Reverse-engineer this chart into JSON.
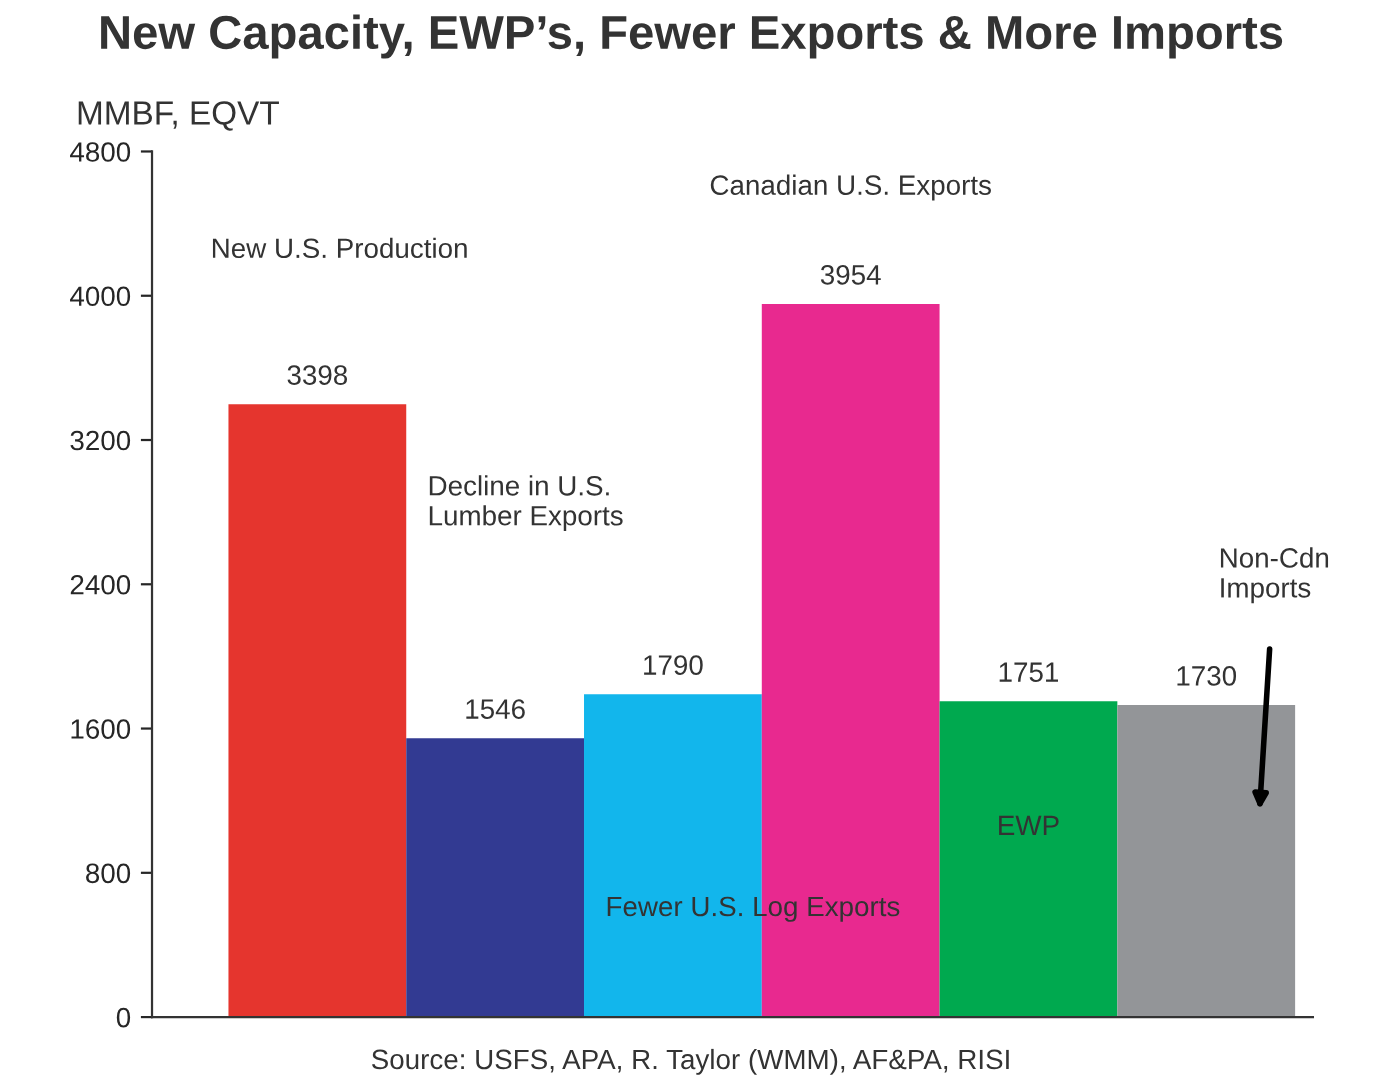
{
  "chart_data": {
    "type": "bar",
    "title": "New Capacity, EWP’s, Fewer Exports & More Imports",
    "ylabel": "MMBF, EQVT",
    "categories": [
      null,
      null,
      null,
      null,
      null,
      null
    ],
    "values": [
      3398,
      1546,
      1790,
      3954,
      1751,
      1730
    ],
    "colors": [
      "#e5352e",
      "#323a92",
      "#12b6ec",
      "#e8298f",
      "#00a94f",
      "#939598"
    ],
    "ylim": [
      0,
      4800
    ],
    "yticks": [
      0,
      800,
      1600,
      2400,
      3200,
      4000,
      4800
    ],
    "grid": false,
    "data_labels": true,
    "annotations": [
      "New U.S. Production",
      "Decline in U.S.\nLumber Exports",
      "Fewer U.S. Log Exports",
      "Canadian U.S. Exports",
      "EWP",
      "Non-Cdn\nImports",
      "Source: USFS, APA, R. Taylor (WMM), AF&PA, RISI"
    ]
  }
}
